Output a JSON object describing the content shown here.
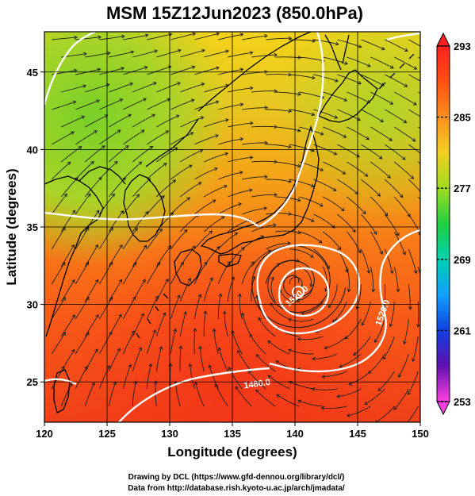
{
  "title": "MSM 15Z12Jun2023 (850.0hPa)",
  "xlabel": "Longitude (degrees)",
  "ylabel": "Latitude (degrees)",
  "credits": [
    "Drawing by DCL (https://www.gfd-dennou.org/library/dcl/)",
    "Data from http://database.rish.kyoto-u.ac.jp/arch/jmadata/"
  ],
  "map": {
    "lon_range": [
      120,
      150
    ],
    "lat_range": [
      22.4,
      47.6
    ],
    "lon_ticks": [
      120,
      125,
      130,
      135,
      140,
      145,
      150
    ],
    "lat_ticks": [
      25,
      30,
      35,
      40,
      45
    ],
    "grid": true,
    "field": "temperature (K), shaded",
    "overlays": [
      "streamlines (wind)",
      "coastlines",
      "geopotential height contours (white)"
    ],
    "contour_labels": [
      {
        "text": "1480.0",
        "lon": 137.0,
        "lat": 24.7,
        "angle": -8
      },
      {
        "text": "1520.0",
        "lon": 140.3,
        "lat": 30.4,
        "angle": -40
      },
      {
        "text": "1520.0",
        "lon": 147.2,
        "lat": 29.4,
        "angle": -70
      }
    ],
    "low_center": {
      "lon": 140.0,
      "lat": 31.4
    }
  },
  "colorbar": {
    "ticks": [
      293,
      285,
      277,
      269,
      261,
      253
    ],
    "range": [
      253,
      293
    ],
    "colors": [
      "#ff40e0",
      "#c020c0",
      "#2030c0",
      "#1070ff",
      "#00c8e8",
      "#00d060",
      "#40d020",
      "#c0e020",
      "#f0d020",
      "#ff9020",
      "#ff4010",
      "#ff2020"
    ]
  }
}
